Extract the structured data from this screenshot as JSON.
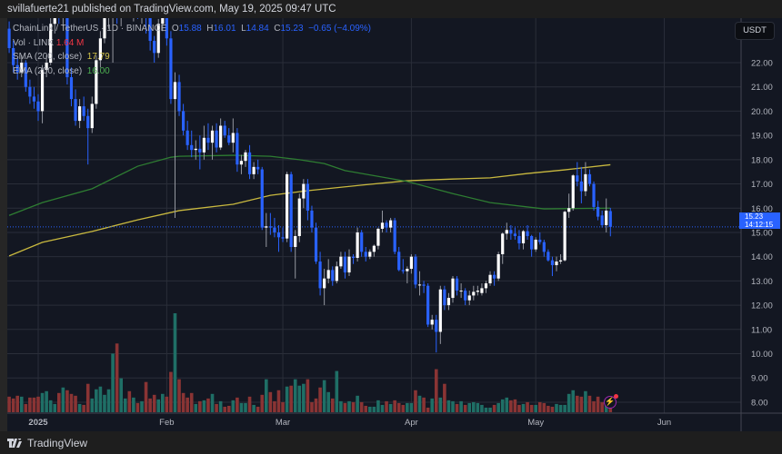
{
  "header": {
    "publisher_line": "svillafuerte21 published on TradingView.com, May 19, 2025 09:47 UTC"
  },
  "legend": {
    "symbol": "ChainLink / TetherUS · 1D · BINANCE",
    "o_label": "O",
    "o": "15.88",
    "h_label": "H",
    "h": "16.01",
    "l_label": "L",
    "l": "14.84",
    "c_label": "C",
    "c": "15.23",
    "change": "−0.65 (−4.09%)",
    "vol_label": "Vol · LINK",
    "vol": "1.64 M",
    "sma_label": "SMA (200, close)",
    "sma": "17.79",
    "ema_label": "EMA (200, close)",
    "ema": "16.00"
  },
  "price_axis": {
    "currency": "USDT",
    "last_price": "15.23",
    "countdown": "14:12:15"
  },
  "footer": {
    "brand": "TradingView"
  },
  "icons": {
    "alert": "lightning-icon",
    "logo": "tradingview-logo"
  },
  "colors": {
    "up": "#ffffff",
    "down": "#2962ff",
    "vol_up": "#1f6f66",
    "vol_down": "#8a3434",
    "sma": "#c9b93f",
    "ema": "#2e7d32",
    "background": "#131722",
    "grid": "#2a2e39",
    "last_price": "#2962ff"
  },
  "chart_data": {
    "type": "candlestick",
    "title": "",
    "ylabel": "USDT",
    "ylim": [
      7.6,
      23.8
    ],
    "grid": true,
    "x_ticks": [
      {
        "date": "2025-01-01",
        "label": "2025"
      },
      {
        "date": "2025-02-01",
        "label": "Feb"
      },
      {
        "date": "2025-03-01",
        "label": "Mar"
      },
      {
        "date": "2025-04-01",
        "label": "Apr"
      },
      {
        "date": "2025-05-01",
        "label": "May"
      },
      {
        "date": "2025-06-01",
        "label": "Jun"
      }
    ],
    "y_ticks": [
      "8.00",
      "9.00",
      "10.00",
      "11.00",
      "12.00",
      "13.00",
      "14.00",
      "15.00",
      "16.00",
      "17.00",
      "18.00",
      "19.00",
      "20.00",
      "21.00",
      "22.00"
    ],
    "candle_fields": [
      "date",
      "open",
      "high",
      "low",
      "close"
    ],
    "candles": [
      [
        "2024-12-25",
        23.4,
        23.7,
        22.4,
        22.6
      ],
      [
        "2024-12-26",
        22.6,
        22.9,
        21.6,
        21.9
      ],
      [
        "2024-12-27",
        21.9,
        22.2,
        21.3,
        21.6
      ],
      [
        "2024-12-28",
        21.6,
        22.3,
        21.4,
        22.0
      ],
      [
        "2024-12-29",
        22.0,
        22.1,
        20.8,
        21.0
      ],
      [
        "2024-12-30",
        21.0,
        21.3,
        20.3,
        20.6
      ],
      [
        "2024-12-31",
        20.6,
        21.0,
        20.1,
        20.4
      ],
      [
        "2025-01-01",
        20.4,
        20.7,
        19.6,
        20.0
      ],
      [
        "2025-01-02",
        20.0,
        21.9,
        19.5,
        21.7
      ],
      [
        "2025-01-03",
        21.7,
        22.3,
        21.4,
        22.0
      ],
      [
        "2025-01-04",
        22.0,
        23.9,
        21.9,
        23.6
      ],
      [
        "2025-01-05",
        23.6,
        24.5,
        23.2,
        24.3
      ],
      [
        "2025-01-06",
        24.3,
        24.8,
        23.6,
        24.0
      ],
      [
        "2025-01-07",
        24.0,
        24.9,
        23.5,
        24.6
      ],
      [
        "2025-01-08",
        24.6,
        24.8,
        21.1,
        21.4
      ],
      [
        "2025-01-09",
        21.4,
        21.8,
        20.2,
        20.5
      ],
      [
        "2025-01-10",
        20.5,
        20.9,
        19.4,
        19.6
      ],
      [
        "2025-01-11",
        19.6,
        20.5,
        19.3,
        20.2
      ],
      [
        "2025-01-12",
        20.2,
        20.6,
        19.6,
        19.8
      ],
      [
        "2025-01-13",
        19.8,
        20.1,
        17.8,
        19.3
      ],
      [
        "2025-01-14",
        19.3,
        20.6,
        19.1,
        20.3
      ],
      [
        "2025-01-15",
        20.3,
        22.3,
        20.1,
        22.1
      ],
      [
        "2025-01-16",
        22.1,
        23.3,
        21.8,
        23.0
      ],
      [
        "2025-01-17",
        23.0,
        24.3,
        22.8,
        24.0
      ],
      [
        "2025-01-18",
        24.0,
        24.6,
        23.4,
        24.2
      ],
      [
        "2025-01-19",
        24.2,
        24.9,
        22.0,
        24.6
      ],
      [
        "2025-01-20",
        24.6,
        25.2,
        23.6,
        24.0
      ],
      [
        "2025-01-21",
        24.0,
        25.0,
        23.5,
        24.8
      ],
      [
        "2025-01-22",
        24.8,
        25.4,
        24.2,
        25.0
      ],
      [
        "2025-01-23",
        25.0,
        25.3,
        23.9,
        24.5
      ],
      [
        "2025-01-24",
        24.5,
        25.1,
        23.7,
        24.9
      ],
      [
        "2025-01-25",
        24.9,
        25.2,
        23.8,
        24.3
      ],
      [
        "2025-01-26",
        24.3,
        24.7,
        23.6,
        24.4
      ],
      [
        "2025-01-27",
        24.4,
        24.6,
        23.2,
        23.9
      ],
      [
        "2025-01-28",
        23.9,
        24.2,
        22.5,
        22.9
      ],
      [
        "2025-01-29",
        22.9,
        23.1,
        22.0,
        22.4
      ],
      [
        "2025-01-30",
        22.4,
        23.8,
        22.2,
        23.6
      ],
      [
        "2025-01-31",
        23.6,
        24.3,
        23.3,
        24.0
      ],
      [
        "2025-02-01",
        24.0,
        24.4,
        22.7,
        23.0
      ],
      [
        "2025-02-02",
        23.0,
        23.3,
        20.3,
        20.5
      ],
      [
        "2025-02-03",
        20.5,
        21.6,
        15.6,
        21.2
      ],
      [
        "2025-02-04",
        21.2,
        21.5,
        19.8,
        20.0
      ],
      [
        "2025-02-05",
        20.0,
        20.3,
        19.0,
        19.2
      ],
      [
        "2025-02-06",
        19.2,
        19.6,
        18.4,
        18.6
      ],
      [
        "2025-02-07",
        18.6,
        19.2,
        18.1,
        18.4
      ],
      [
        "2025-02-08",
        18.4,
        18.8,
        18.0,
        18.45
      ],
      [
        "2025-02-09",
        18.45,
        19.0,
        17.6,
        18.3
      ],
      [
        "2025-02-10",
        18.3,
        19.4,
        18.0,
        18.9
      ],
      [
        "2025-02-11",
        18.9,
        19.5,
        18.4,
        18.7
      ],
      [
        "2025-02-12",
        18.7,
        19.4,
        18.0,
        19.2
      ],
      [
        "2025-02-13",
        19.2,
        19.5,
        18.3,
        18.5
      ],
      [
        "2025-02-14",
        18.5,
        19.7,
        18.4,
        19.4
      ],
      [
        "2025-02-15",
        19.4,
        19.6,
        18.9,
        19.0
      ],
      [
        "2025-02-16",
        19.0,
        19.3,
        18.6,
        18.7
      ],
      [
        "2025-02-17",
        18.7,
        19.7,
        18.3,
        19.1
      ],
      [
        "2025-02-18",
        19.1,
        19.3,
        17.5,
        17.8
      ],
      [
        "2025-02-19",
        17.8,
        18.2,
        17.4,
        17.95
      ],
      [
        "2025-02-20",
        17.95,
        18.4,
        17.7,
        18.3
      ],
      [
        "2025-02-21",
        18.3,
        18.6,
        17.2,
        17.4
      ],
      [
        "2025-02-22",
        17.4,
        17.9,
        17.2,
        17.7
      ],
      [
        "2025-02-23",
        17.7,
        18.0,
        17.4,
        17.6
      ],
      [
        "2025-02-24",
        17.6,
        17.7,
        15.1,
        15.2
      ],
      [
        "2025-02-25",
        15.2,
        15.8,
        14.4,
        15.25
      ],
      [
        "2025-02-26",
        15.25,
        15.8,
        14.9,
        15.2
      ],
      [
        "2025-02-27",
        15.2,
        15.6,
        14.8,
        15.0
      ],
      [
        "2025-02-28",
        15.0,
        15.3,
        14.2,
        14.8
      ],
      [
        "2025-03-01",
        14.8,
        15.2,
        14.6,
        14.75
      ],
      [
        "2025-03-02",
        14.75,
        17.5,
        14.6,
        17.4
      ],
      [
        "2025-03-03",
        17.4,
        17.5,
        14.2,
        14.4
      ],
      [
        "2025-03-04",
        14.4,
        15.1,
        13.1,
        14.85
      ],
      [
        "2025-03-05",
        14.85,
        16.6,
        14.6,
        16.4
      ],
      [
        "2025-03-06",
        16.4,
        17.2,
        16.0,
        17.0
      ],
      [
        "2025-03-07",
        17.0,
        17.2,
        15.5,
        15.9
      ],
      [
        "2025-03-08",
        15.9,
        16.1,
        15.0,
        15.2
      ],
      [
        "2025-03-09",
        15.2,
        15.4,
        13.7,
        13.8
      ],
      [
        "2025-03-10",
        13.8,
        14.2,
        12.4,
        12.7
      ],
      [
        "2025-03-11",
        12.7,
        13.5,
        12.0,
        13.1
      ],
      [
        "2025-03-12",
        13.1,
        13.9,
        12.9,
        13.45
      ],
      [
        "2025-03-13",
        13.45,
        13.6,
        12.8,
        13.0
      ],
      [
        "2025-03-14",
        13.0,
        13.8,
        12.9,
        13.6
      ],
      [
        "2025-03-15",
        13.6,
        14.2,
        13.5,
        14.0
      ],
      [
        "2025-03-16",
        14.0,
        14.2,
        13.1,
        13.35
      ],
      [
        "2025-03-17",
        13.35,
        14.3,
        13.2,
        14.0
      ],
      [
        "2025-03-18",
        14.0,
        14.1,
        13.7,
        13.95
      ],
      [
        "2025-03-19",
        13.95,
        15.2,
        13.8,
        15.0
      ],
      [
        "2025-03-20",
        15.0,
        15.1,
        14.0,
        14.2
      ],
      [
        "2025-03-21",
        14.2,
        14.4,
        13.8,
        14.0
      ],
      [
        "2025-03-22",
        14.0,
        14.3,
        13.9,
        14.2
      ],
      [
        "2025-03-23",
        14.2,
        14.5,
        14.0,
        14.45
      ],
      [
        "2025-03-24",
        14.45,
        15.2,
        14.3,
        15.15
      ],
      [
        "2025-03-25",
        15.15,
        15.9,
        15.0,
        15.4
      ],
      [
        "2025-03-26",
        15.4,
        15.5,
        15.0,
        15.2
      ],
      [
        "2025-03-27",
        15.2,
        15.6,
        15.0,
        15.5
      ],
      [
        "2025-03-28",
        15.5,
        15.6,
        14.1,
        14.2
      ],
      [
        "2025-03-29",
        14.2,
        14.4,
        13.4,
        13.45
      ],
      [
        "2025-03-30",
        13.45,
        13.9,
        13.3,
        13.4
      ],
      [
        "2025-03-31",
        13.4,
        13.6,
        12.9,
        13.5
      ],
      [
        "2025-04-01",
        13.5,
        14.1,
        13.3,
        14.0
      ],
      [
        "2025-04-02",
        14.0,
        14.1,
        12.7,
        12.85
      ],
      [
        "2025-04-03",
        12.85,
        13.4,
        12.4,
        12.85
      ],
      [
        "2025-04-04",
        12.85,
        13.0,
        12.5,
        12.8
      ],
      [
        "2025-04-05",
        12.8,
        12.9,
        11.1,
        11.2
      ],
      [
        "2025-04-06",
        11.2,
        11.6,
        11.0,
        11.4
      ],
      [
        "2025-04-07",
        11.4,
        11.6,
        10.05,
        10.9
      ],
      [
        "2025-04-08",
        10.9,
        12.8,
        10.4,
        12.65
      ],
      [
        "2025-04-09",
        12.65,
        12.8,
        11.8,
        12.0
      ],
      [
        "2025-04-10",
        12.0,
        12.5,
        11.8,
        12.3
      ],
      [
        "2025-04-11",
        12.3,
        13.2,
        12.1,
        13.1
      ],
      [
        "2025-04-12",
        13.1,
        13.2,
        12.4,
        12.6
      ],
      [
        "2025-04-13",
        12.6,
        12.9,
        12.3,
        12.6
      ],
      [
        "2025-04-14",
        12.6,
        12.7,
        12.0,
        12.2
      ],
      [
        "2025-04-15",
        12.2,
        12.6,
        12.0,
        12.4
      ],
      [
        "2025-04-16",
        12.4,
        12.8,
        12.2,
        12.55
      ],
      [
        "2025-04-17",
        12.55,
        12.8,
        12.4,
        12.6
      ],
      [
        "2025-04-18",
        12.5,
        12.9,
        12.4,
        12.7
      ],
      [
        "2025-04-19",
        12.7,
        13.0,
        12.5,
        12.9
      ],
      [
        "2025-04-20",
        12.9,
        13.4,
        12.8,
        13.25
      ],
      [
        "2025-04-21",
        13.25,
        13.4,
        12.8,
        13.1
      ],
      [
        "2025-04-22",
        13.1,
        14.2,
        13.0,
        14.1
      ],
      [
        "2025-04-23",
        14.1,
        15.0,
        13.7,
        14.95
      ],
      [
        "2025-04-24",
        14.95,
        15.4,
        14.7,
        15.1
      ],
      [
        "2025-04-25",
        15.1,
        15.3,
        14.7,
        14.95
      ],
      [
        "2025-04-26",
        14.95,
        15.2,
        14.7,
        14.85
      ],
      [
        "2025-04-27",
        14.85,
        15.1,
        14.3,
        14.55
      ],
      [
        "2025-04-28",
        14.55,
        15.1,
        14.3,
        15.05
      ],
      [
        "2025-04-29",
        15.05,
        15.3,
        14.7,
        14.85
      ],
      [
        "2025-04-30",
        14.85,
        14.9,
        14.0,
        14.3
      ],
      [
        "2025-05-01",
        14.3,
        14.8,
        14.2,
        14.7
      ],
      [
        "2025-05-02",
        14.7,
        15.0,
        14.5,
        14.6
      ],
      [
        "2025-05-03",
        14.6,
        14.7,
        14.0,
        14.2
      ],
      [
        "2025-05-04",
        14.2,
        14.3,
        13.8,
        13.85
      ],
      [
        "2025-05-05",
        13.85,
        14.0,
        13.2,
        13.65
      ],
      [
        "2025-05-06",
        13.65,
        14.0,
        13.4,
        13.8
      ],
      [
        "2025-05-07",
        13.8,
        14.1,
        13.7,
        13.85
      ],
      [
        "2025-05-08",
        13.85,
        15.9,
        13.8,
        15.85
      ],
      [
        "2025-05-09",
        15.85,
        16.6,
        15.6,
        16.0
      ],
      [
        "2025-05-10",
        16.0,
        17.4,
        15.9,
        17.35
      ],
      [
        "2025-05-11",
        17.35,
        17.9,
        16.9,
        17.1
      ],
      [
        "2025-05-12",
        17.1,
        17.7,
        16.2,
        16.7
      ],
      [
        "2025-05-13",
        16.7,
        17.9,
        16.5,
        17.4
      ],
      [
        "2025-05-14",
        17.4,
        17.6,
        16.9,
        17.0
      ],
      [
        "2025-05-15",
        17.0,
        17.1,
        15.9,
        16.05
      ],
      [
        "2025-05-16",
        16.05,
        16.3,
        15.5,
        15.65
      ],
      [
        "2025-05-17",
        15.7,
        15.9,
        15.2,
        15.3
      ],
      [
        "2025-05-18",
        15.3,
        16.4,
        15.0,
        15.9
      ],
      [
        "2025-05-19",
        15.88,
        16.01,
        14.84,
        15.23
      ]
    ],
    "volume_unit": "M LINK",
    "volume": [
      5.1,
      4.5,
      5.4,
      5.1,
      2.7,
      4.8,
      4.8,
      5.1,
      6.3,
      6.9,
      3.9,
      2.7,
      6.3,
      8.1,
      7.2,
      6.0,
      5.4,
      2.7,
      2.4,
      9.3,
      4.5,
      7.5,
      8.4,
      5.7,
      7.5,
      19.2,
      22.5,
      11.1,
      4.5,
      6.9,
      4.8,
      3.0,
      3.6,
      9.9,
      4.5,
      5.7,
      4.2,
      6.0,
      5.1,
      13.2,
      32.4,
      10.8,
      6.3,
      4.8,
      6.3,
      2.7,
      3.6,
      3.9,
      4.5,
      6.0,
      2.7,
      3.6,
      1.8,
      2.1,
      3.9,
      4.8,
      3.0,
      3.0,
      5.1,
      2.4,
      1.8,
      5.7,
      10.8,
      6.6,
      3.6,
      7.2,
      3.3,
      8.4,
      8.7,
      10.8,
      8.7,
      9.3,
      10.8,
      3.3,
      4.5,
      8.1,
      10.5,
      6.6,
      4.5,
      13.5,
      3.6,
      3.0,
      3.6,
      3.3,
      5.4,
      3.3,
      2.1,
      1.8,
      1.8,
      3.9,
      2.4,
      3.6,
      2.7,
      3.9,
      3.0,
      2.4,
      3.0,
      3.0,
      7.2,
      5.4,
      4.8,
      1.5,
      4.5,
      14.1,
      4.8,
      9.3,
      3.9,
      3.6,
      2.7,
      3.6,
      2.4,
      3.0,
      3.3,
      3.0,
      2.4,
      1.5,
      1.5,
      2.4,
      3.0,
      4.2,
      4.8,
      3.9,
      4.2,
      2.4,
      2.7,
      3.3,
      2.4,
      2.4,
      3.3,
      3.0,
      2.1,
      1.8,
      2.7,
      2.4,
      2.4,
      6.0,
      7.2,
      5.4,
      5.1,
      6.9,
      5.4,
      3.6,
      5.1,
      3.3,
      3.0,
      1.64
    ],
    "series": [
      {
        "name": "SMA (200, close)",
        "points": [
          [
            "2024-12-25",
            14.03
          ],
          [
            "2025-01-02",
            14.59
          ],
          [
            "2025-01-14",
            15.04
          ],
          [
            "2025-01-25",
            15.52
          ],
          [
            "2025-02-04",
            15.9
          ],
          [
            "2025-02-17",
            16.16
          ],
          [
            "2025-02-26",
            16.53
          ],
          [
            "2025-03-07",
            16.72
          ],
          [
            "2025-03-20",
            16.95
          ],
          [
            "2025-03-31",
            17.13
          ],
          [
            "2025-04-11",
            17.2
          ],
          [
            "2025-04-20",
            17.25
          ],
          [
            "2025-04-29",
            17.43
          ],
          [
            "2025-05-08",
            17.58
          ],
          [
            "2025-05-19",
            17.79
          ]
        ]
      },
      {
        "name": "EMA (200, close)",
        "points": [
          [
            "2024-12-25",
            15.7
          ],
          [
            "2025-01-02",
            16.23
          ],
          [
            "2025-01-14",
            16.8
          ],
          [
            "2025-01-25",
            17.73
          ],
          [
            "2025-02-02",
            18.1
          ],
          [
            "2025-02-04",
            18.14
          ],
          [
            "2025-02-17",
            18.18
          ],
          [
            "2025-02-26",
            18.14
          ],
          [
            "2025-03-05",
            18.0
          ],
          [
            "2025-03-11",
            17.84
          ],
          [
            "2025-03-16",
            17.55
          ],
          [
            "2025-03-31",
            17.1
          ],
          [
            "2025-04-11",
            16.6
          ],
          [
            "2025-04-20",
            16.23
          ],
          [
            "2025-05-03",
            15.97
          ],
          [
            "2025-05-08",
            15.98
          ],
          [
            "2025-05-19",
            16.0
          ]
        ]
      }
    ]
  }
}
